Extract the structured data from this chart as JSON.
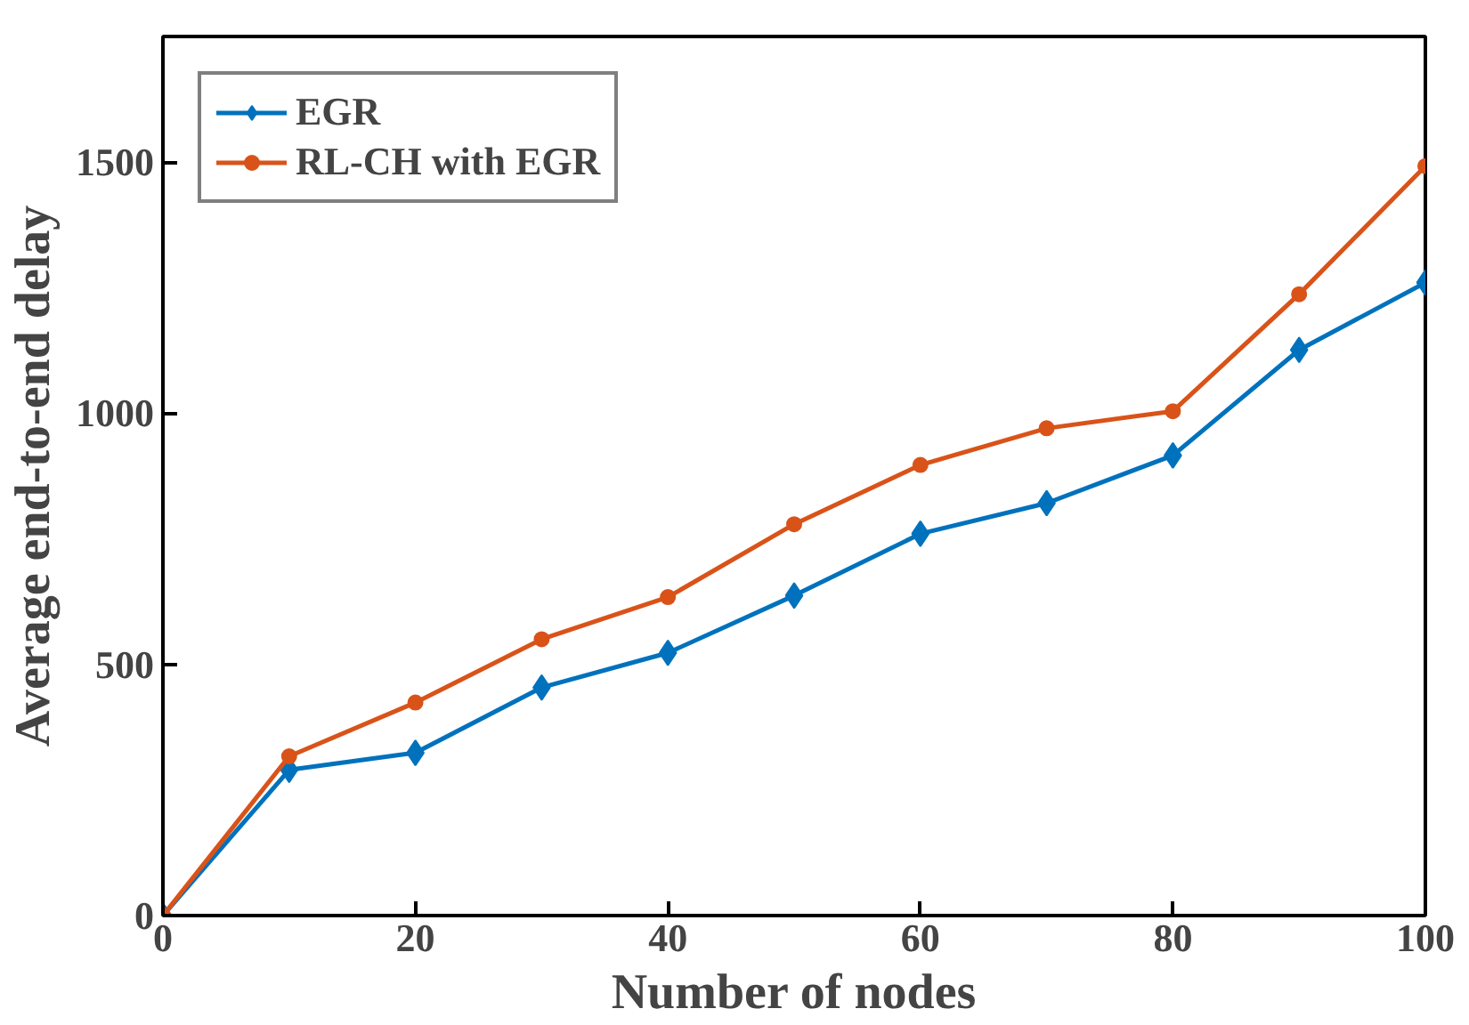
{
  "chart_data": {
    "type": "line",
    "xlabel": "Number of nodes",
    "ylabel": "Average end-to-end delay",
    "x": [
      0,
      10,
      20,
      30,
      40,
      50,
      60,
      70,
      80,
      90,
      100
    ],
    "xlim": [
      0,
      100
    ],
    "xticks": [
      0,
      20,
      40,
      60,
      80,
      100
    ],
    "ylim": [
      0,
      1750
    ],
    "yticks": [
      0,
      500,
      1000,
      1500
    ],
    "grid": false,
    "legend": "top left",
    "line_style": "solid",
    "series": [
      {
        "name": "EGR",
        "color": "#0072bd",
        "marker": "diamond",
        "values": [
          0,
          290,
          324,
          454,
          523,
          637,
          760,
          821,
          916,
          1126,
          1260
        ]
      },
      {
        "name": "RL-CH with EGR",
        "color": "#d95319",
        "marker": "circle",
        "values": [
          0,
          317,
          424,
          550,
          634,
          779,
          897,
          970,
          1004,
          1237,
          1492
        ]
      }
    ]
  }
}
